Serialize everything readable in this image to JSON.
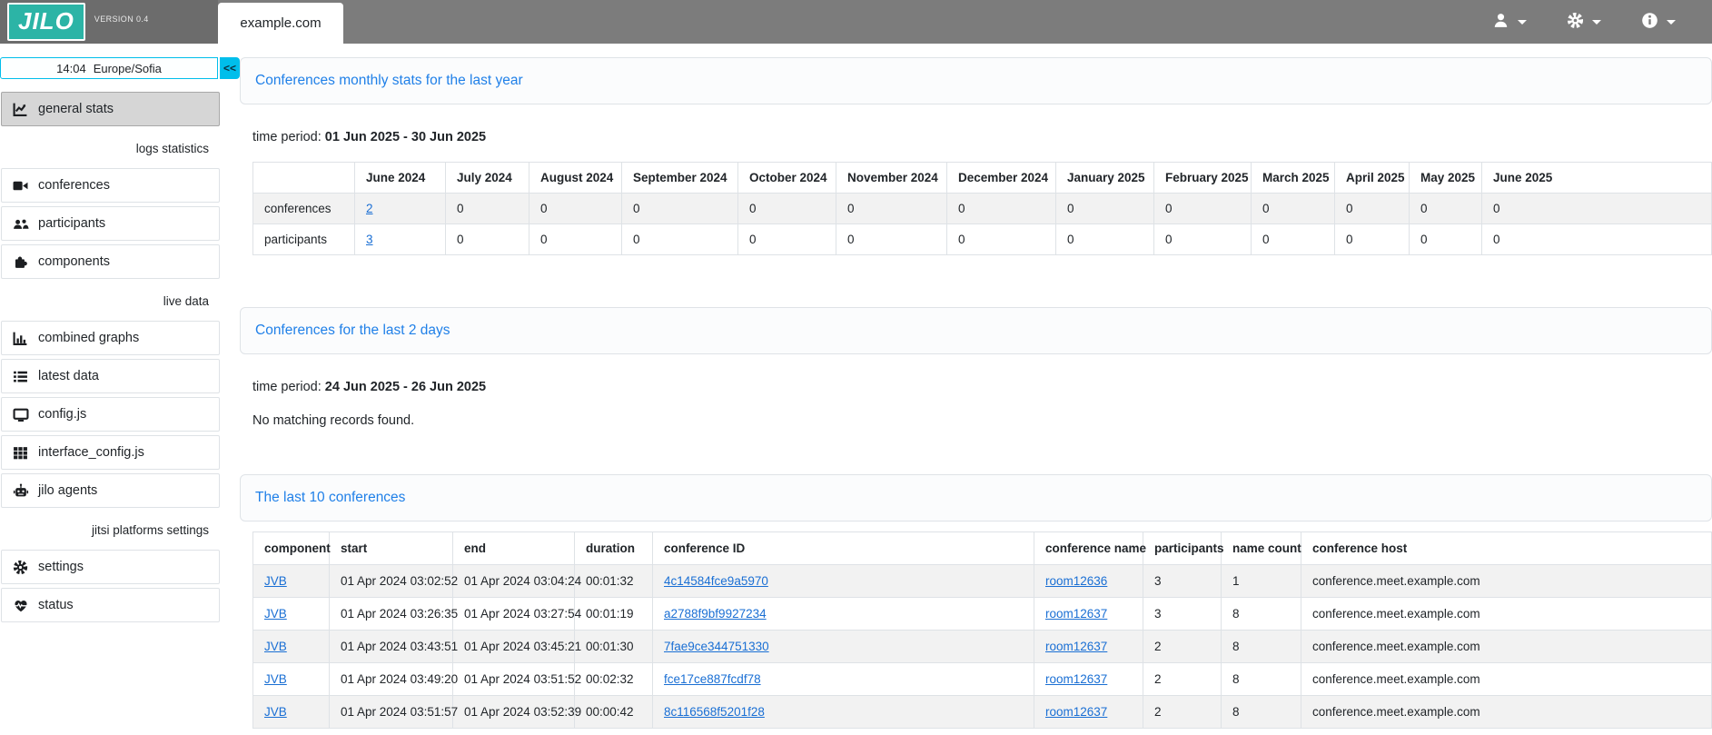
{
  "header": {
    "logo": "JILO",
    "version": "VERSION 0.4",
    "tab": "example.com",
    "menus": [
      "user-menu",
      "settings-menu",
      "info-menu"
    ]
  },
  "sidebar": {
    "clock": {
      "time": "14:04",
      "timezone": "Europe/Sofia"
    },
    "collapse_label": "<<",
    "items": [
      {
        "type": "item",
        "icon": "line-chart-icon",
        "label": "general stats",
        "active": true
      },
      {
        "type": "section",
        "label": "logs statistics"
      },
      {
        "type": "item",
        "icon": "video-icon",
        "label": "conferences"
      },
      {
        "type": "item",
        "icon": "users-icon",
        "label": "participants"
      },
      {
        "type": "item",
        "icon": "puzzle-icon",
        "label": "components"
      },
      {
        "type": "section",
        "label": "live data"
      },
      {
        "type": "item",
        "icon": "bar-chart-icon",
        "label": "combined graphs"
      },
      {
        "type": "item",
        "icon": "list-icon",
        "label": "latest data"
      },
      {
        "type": "item",
        "icon": "monitor-icon",
        "label": "config.js"
      },
      {
        "type": "item",
        "icon": "grid-icon",
        "label": "interface_config.js"
      },
      {
        "type": "item",
        "icon": "robot-icon",
        "label": "jilo agents"
      },
      {
        "type": "section",
        "label": "jitsi platforms settings"
      },
      {
        "type": "item",
        "icon": "gear-icon",
        "label": "settings"
      },
      {
        "type": "item",
        "icon": "heart-pulse-icon",
        "label": "status"
      }
    ]
  },
  "main": {
    "monthly": {
      "title": "Conferences monthly stats for the last year",
      "time_period_label": "time period:",
      "time_period": "01 Jun 2025 - 30 Jun 2025",
      "table": {
        "columns": [
          "",
          "June 2024",
          "July 2024",
          "August 2024",
          "September 2024",
          "October 2024",
          "November 2024",
          "December 2024",
          "January 2025",
          "February 2025",
          "March 2025",
          "April 2025",
          "May 2025",
          "June 2025"
        ],
        "rows": [
          {
            "label": "conferences",
            "values": [
              "2",
              "0",
              "0",
              "0",
              "0",
              "0",
              "0",
              "0",
              "0",
              "0",
              "0",
              "0",
              "0"
            ],
            "link_indices": [
              0
            ]
          },
          {
            "label": "participants",
            "values": [
              "3",
              "0",
              "0",
              "0",
              "0",
              "0",
              "0",
              "0",
              "0",
              "0",
              "0",
              "0",
              "0"
            ],
            "link_indices": [
              0
            ]
          }
        ]
      }
    },
    "last2days": {
      "title": "Conferences for the last 2 days",
      "time_period_label": "time period:",
      "time_period": "24 Jun 2025 - 26 Jun 2025",
      "empty_message": "No matching records found."
    },
    "last10": {
      "title": "The last 10 conferences",
      "columns": [
        "component",
        "start",
        "end",
        "duration",
        "conference ID",
        "conference name",
        "participants",
        "name count",
        "conference host"
      ],
      "link_columns": [
        0,
        4,
        5
      ],
      "rows": [
        [
          "JVB",
          "01 Apr 2024 03:02:52",
          "01 Apr 2024 03:04:24",
          "00:01:32",
          "4c14584fce9a5970",
          "room12636",
          "3",
          "1",
          "conference.meet.example.com"
        ],
        [
          "JVB",
          "01 Apr 2024 03:26:35",
          "01 Apr 2024 03:27:54",
          "00:01:19",
          "a2788f9bf9927234",
          "room12637",
          "3",
          "8",
          "conference.meet.example.com"
        ],
        [
          "JVB",
          "01 Apr 2024 03:43:51",
          "01 Apr 2024 03:45:21",
          "00:01:30",
          "7fae9ce344751330",
          "room12637",
          "2",
          "8",
          "conference.meet.example.com"
        ],
        [
          "JVB",
          "01 Apr 2024 03:49:20",
          "01 Apr 2024 03:51:52",
          "00:02:32",
          "fce17ce887fcdf78",
          "room12637",
          "2",
          "8",
          "conference.meet.example.com"
        ],
        [
          "JVB",
          "01 Apr 2024 03:51:57",
          "01 Apr 2024 03:52:39",
          "00:00:42",
          "8c116568f5201f28",
          "room12637",
          "2",
          "8",
          "conference.meet.example.com"
        ]
      ]
    }
  },
  "colors": {
    "brand_teal": "#2cb4a6",
    "cyan_accent": "#00beeb",
    "header_gray": "#7c7c7c",
    "header_gray_dark": "#6c6c6c",
    "title_blue": "#2080e8",
    "link_blue": "#1a6fd4",
    "stripe_gray": "#f2f2f2",
    "border_gray": "#dee2e6"
  }
}
